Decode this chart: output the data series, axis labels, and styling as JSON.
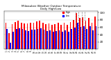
{
  "title": "Milwaukee Weather Outdoor Temperature\nDaily High/Low",
  "background_color": "#ffffff",
  "high_color": "#ff0000",
  "low_color": "#0000ff",
  "grid_color": "#c8c8c8",
  "ylim": [
    0,
    105
  ],
  "yticks": [
    20,
    40,
    60,
    80,
    100
  ],
  "days": [
    "1",
    "2",
    "3",
    "4",
    "5",
    "6",
    "7",
    "8",
    "9",
    "10",
    "11",
    "12",
    "13",
    "14",
    "15",
    "16",
    "17",
    "18",
    "19",
    "20",
    "21",
    "22",
    "23",
    "24",
    "25",
    "26",
    "27",
    "28",
    "29",
    "30"
  ],
  "highs": [
    72,
    44,
    68,
    75,
    78,
    72,
    70,
    70,
    73,
    73,
    76,
    78,
    73,
    69,
    70,
    66,
    68,
    72,
    66,
    72,
    66,
    75,
    80,
    99,
    85,
    88,
    78,
    85,
    72,
    90
  ],
  "lows": [
    55,
    18,
    48,
    55,
    58,
    55,
    52,
    50,
    53,
    53,
    56,
    58,
    53,
    50,
    52,
    48,
    50,
    52,
    48,
    52,
    48,
    55,
    60,
    72,
    61,
    63,
    56,
    63,
    52,
    62
  ],
  "dashed_range": [
    23,
    25
  ],
  "legend_high": "High",
  "legend_low": "Low",
  "bar_width": 0.4
}
